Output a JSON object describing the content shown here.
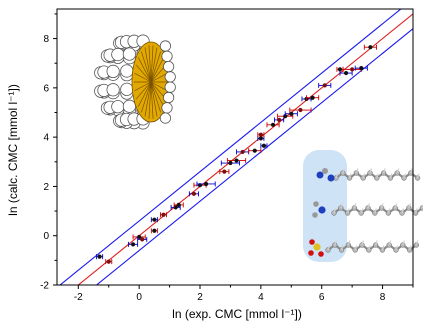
{
  "chart_data": {
    "type": "scatter",
    "xlabel": "ln (exp. CMC [mmol l⁻¹])",
    "ylabel": "ln (calc. CMC [mmol l⁻¹])",
    "xlim": [
      -2.7,
      9.0
    ],
    "ylim": [
      -2.0,
      9.2
    ],
    "xticks": [
      -2,
      0,
      2,
      4,
      6,
      8
    ],
    "yticks": [
      -2,
      0,
      2,
      4,
      6,
      8
    ],
    "xtick_labels": [
      "-2",
      "0",
      "2",
      "4",
      "6",
      "8"
    ],
    "ytick_labels": [
      "-2",
      "0",
      "2",
      "4",
      "6",
      "8"
    ],
    "grid": false,
    "series": [
      {
        "role": "data points with horizontal error bars",
        "points": [
          {
            "x": -1.3,
            "y": -0.85,
            "xerr": 0.1
          },
          {
            "x": -1.0,
            "y": -1.05,
            "xerr": 0.1
          },
          {
            "x": -0.2,
            "y": -0.35,
            "xerr": 0.15
          },
          {
            "x": 0.0,
            "y": -0.05,
            "xerr": 0.2
          },
          {
            "x": 0.1,
            "y": -0.15,
            "xerr": 0.15
          },
          {
            "x": 0.5,
            "y": 0.2,
            "xerr": 0.1
          },
          {
            "x": 0.5,
            "y": 0.65,
            "xerr": 0.1
          },
          {
            "x": 0.8,
            "y": 0.85,
            "xerr": 0.1
          },
          {
            "x": 1.2,
            "y": 1.15,
            "xerr": 0.15
          },
          {
            "x": 1.3,
            "y": 1.25,
            "xerr": 0.15
          },
          {
            "x": 1.8,
            "y": 1.7,
            "xerr": 0.15
          },
          {
            "x": 2.0,
            "y": 2.05,
            "xerr": 0.2
          },
          {
            "x": 2.2,
            "y": 2.1,
            "xerr": 0.3
          },
          {
            "x": 2.8,
            "y": 2.6,
            "xerr": 0.15
          },
          {
            "x": 3.0,
            "y": 2.95,
            "xerr": 0.3
          },
          {
            "x": 3.2,
            "y": 3.05,
            "xerr": 0.3
          },
          {
            "x": 3.4,
            "y": 3.4,
            "xerr": 0.2
          },
          {
            "x": 3.8,
            "y": 3.45,
            "xerr": 0.2
          },
          {
            "x": 4.0,
            "y": 3.95,
            "xerr": 0.1
          },
          {
            "x": 4.0,
            "y": 4.1,
            "xerr": 0.1
          },
          {
            "x": 4.1,
            "y": 3.65,
            "xerr": 0.1
          },
          {
            "x": 4.4,
            "y": 4.5,
            "xerr": 0.2
          },
          {
            "x": 4.6,
            "y": 4.7,
            "xerr": 0.15
          },
          {
            "x": 4.8,
            "y": 4.85,
            "xerr": 0.25
          },
          {
            "x": 5.0,
            "y": 4.95,
            "xerr": 0.2
          },
          {
            "x": 5.3,
            "y": 5.1,
            "xerr": 0.35
          },
          {
            "x": 5.5,
            "y": 5.55,
            "xerr": 0.15
          },
          {
            "x": 5.7,
            "y": 5.6,
            "xerr": 0.2
          },
          {
            "x": 6.1,
            "y": 6.1,
            "xerr": 0.2
          },
          {
            "x": 6.6,
            "y": 6.75,
            "xerr": 0.1
          },
          {
            "x": 6.8,
            "y": 6.6,
            "xerr": 0.2
          },
          {
            "x": 7.0,
            "y": 6.75,
            "xerr": 0.3
          },
          {
            "x": 7.3,
            "y": 6.8,
            "xerr": 0.2
          },
          {
            "x": 7.6,
            "y": 7.65,
            "xerr": 0.2
          }
        ],
        "colors": {
          "marker": "#111111",
          "marker_alt": "#7a1010",
          "errorbar_outer": "#0000cc",
          "errorbar_inner": "#cc0000"
        }
      },
      {
        "role": "red fit line y = x",
        "line": [
          [
            -2.7,
            -2.7
          ],
          [
            9.0,
            9.0
          ]
        ],
        "color": "#e02020"
      },
      {
        "role": "blue upper bound line",
        "line": [
          [
            -2.7,
            -2.1
          ],
          [
            9.0,
            9.6
          ]
        ],
        "color": "#1a1af0"
      },
      {
        "role": "blue lower bound line",
        "line": [
          [
            -2.7,
            -3.3
          ],
          [
            9.0,
            8.4
          ]
        ],
        "color": "#1a1af0"
      }
    ],
    "insets": [
      {
        "role": "micelle-illustration",
        "colors": {
          "head": "#ffffff",
          "head_stroke": "#555555",
          "core": "#e0a800",
          "tails": "#7a5200"
        }
      },
      {
        "role": "surfactant-molecules-illustration",
        "colors": {
          "highlight": "#cfe3f7",
          "carbon": "#b8b8b8",
          "carbon_stroke": "#666666",
          "nitrogen": "#1f3fbf",
          "sulfur": "#e0c020",
          "oxygen": "#d01010"
        }
      }
    ]
  }
}
